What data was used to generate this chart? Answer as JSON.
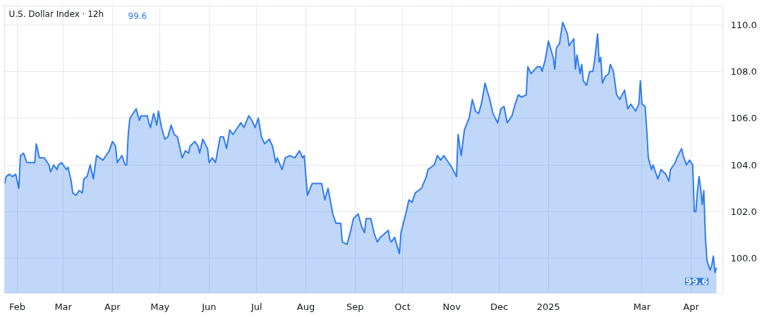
{
  "chart_data": {
    "type": "area",
    "title": "U.S. Dollar Index · 12h",
    "annotations": [
      "99.6",
      {
        "text": "99.6",
        "x": "2025-04-17",
        "y": 99.6
      }
    ],
    "x": [
      "2024-01-24",
      "2024-01-25",
      "2024-01-27",
      "2024-01-29",
      "2024-01-31",
      "2024-02-02",
      "2024-02-03",
      "2024-02-05",
      "2024-02-07",
      "2024-02-10",
      "2024-02-12",
      "2024-02-13",
      "2024-02-15",
      "2024-02-18",
      "2024-02-21",
      "2024-02-22",
      "2024-02-24",
      "2024-02-26",
      "2024-02-27",
      "2024-02-29",
      "2024-03-03",
      "2024-03-04",
      "2024-03-06",
      "2024-03-07",
      "2024-03-09",
      "2024-03-11",
      "2024-03-13",
      "2024-03-14",
      "2024-03-16",
      "2024-03-18",
      "2024-03-20",
      "2024-03-22",
      "2024-03-26",
      "2024-03-28",
      "2024-03-30",
      "2024-04-01",
      "2024-04-03",
      "2024-04-04",
      "2024-04-07",
      "2024-04-09",
      "2024-04-10",
      "2024-04-11",
      "2024-04-12",
      "2024-04-16",
      "2024-04-18",
      "2024-04-19",
      "2024-04-23",
      "2024-04-24",
      "2024-04-25",
      "2024-04-27",
      "2024-04-29",
      "2024-04-30",
      "2024-05-02",
      "2024-05-04",
      "2024-05-06",
      "2024-05-08",
      "2024-05-10",
      "2024-05-12",
      "2024-05-15",
      "2024-05-17",
      "2024-05-19",
      "2024-05-20",
      "2024-05-23",
      "2024-05-25",
      "2024-05-26",
      "2024-05-28",
      "2024-05-31",
      "2024-06-01",
      "2024-06-03",
      "2024-06-05",
      "2024-06-08",
      "2024-06-10",
      "2024-06-12",
      "2024-06-14",
      "2024-06-16",
      "2024-06-18",
      "2024-06-21",
      "2024-06-23",
      "2024-06-26",
      "2024-06-28",
      "2024-06-30",
      "2024-07-02",
      "2024-07-04",
      "2024-07-06",
      "2024-07-09",
      "2024-07-11",
      "2024-07-13",
      "2024-07-14",
      "2024-07-17",
      "2024-07-19",
      "2024-07-22",
      "2024-07-25",
      "2024-07-28",
      "2024-07-30",
      "2024-07-31",
      "2024-08-02",
      "2024-08-05",
      "2024-08-08",
      "2024-08-11",
      "2024-08-13",
      "2024-08-15",
      "2024-08-18",
      "2024-08-20",
      "2024-08-23",
      "2024-08-24",
      "2024-08-27",
      "2024-08-29",
      "2024-08-31",
      "2024-09-03",
      "2024-09-05",
      "2024-09-07",
      "2024-09-08",
      "2024-09-11",
      "2024-09-13",
      "2024-09-15",
      "2024-09-17",
      "2024-09-22",
      "2024-09-23",
      "2024-09-24",
      "2024-09-26",
      "2024-09-29",
      "2024-09-30",
      "2024-10-03",
      "2024-10-05",
      "2024-10-07",
      "2024-10-09",
      "2024-10-13",
      "2024-10-16",
      "2024-10-17",
      "2024-10-21",
      "2024-10-23",
      "2024-10-25",
      "2024-10-27",
      "2024-10-30",
      "2024-11-01",
      "2024-11-04",
      "2024-11-05",
      "2024-11-07",
      "2024-11-09",
      "2024-11-12",
      "2024-11-14",
      "2024-11-16",
      "2024-11-18",
      "2024-11-20",
      "2024-11-22",
      "2024-11-25",
      "2024-11-27",
      "2024-11-30",
      "2024-12-02",
      "2024-12-04",
      "2024-12-06",
      "2024-12-09",
      "2024-12-11",
      "2024-12-13",
      "2024-12-15",
      "2024-12-18",
      "2024-12-19",
      "2024-12-21",
      "2024-12-25",
      "2024-12-27",
      "2024-12-28",
      "2024-12-30",
      "2025-01-01",
      "2025-01-04",
      "2025-01-05",
      "2025-01-06",
      "2025-01-08",
      "2025-01-10",
      "2025-01-13",
      "2025-01-14",
      "2025-01-17",
      "2025-01-18",
      "2025-01-19",
      "2025-01-21",
      "2025-01-22",
      "2025-01-23",
      "2025-01-25",
      "2025-01-27",
      "2025-01-29",
      "2025-01-30",
      "2025-02-01",
      "2025-02-02",
      "2025-02-03",
      "2025-02-04",
      "2025-02-06",
      "2025-02-08",
      "2025-02-09",
      "2025-02-11",
      "2025-02-13",
      "2025-02-15",
      "2025-02-18",
      "2025-02-20",
      "2025-02-22",
      "2025-02-25",
      "2025-02-27",
      "2025-02-28",
      "2025-03-01",
      "2025-03-03",
      "2025-03-04",
      "2025-03-05",
      "2025-03-07",
      "2025-03-08",
      "2025-03-11",
      "2025-03-13",
      "2025-03-16",
      "2025-03-18",
      "2025-03-19",
      "2025-03-22",
      "2025-03-23",
      "2025-03-26",
      "2025-03-27",
      "2025-03-29",
      "2025-03-31",
      "2025-04-02",
      "2025-04-03",
      "2025-04-04",
      "2025-04-05",
      "2025-04-06",
      "2025-04-07",
      "2025-04-08",
      "2025-04-09",
      "2025-04-10",
      "2025-04-11",
      "2025-04-13",
      "2025-04-14",
      "2025-04-15",
      "2025-04-16",
      "2025-04-17"
    ],
    "series": [
      {
        "color": "#2f7bf0",
        "values": [
          103.2,
          103.5,
          103.6,
          103.5,
          103.6,
          103.0,
          104.4,
          104.5,
          104.1,
          104.1,
          104.1,
          104.9,
          104.3,
          104.3,
          104.0,
          103.7,
          104.0,
          103.8,
          104.0,
          104.1,
          103.8,
          103.9,
          103.3,
          102.8,
          102.7,
          102.9,
          102.8,
          103.4,
          103.5,
          104.0,
          103.4,
          104.4,
          104.2,
          104.4,
          104.6,
          105.0,
          104.8,
          104.1,
          104.4,
          104.0,
          104.0,
          105.3,
          106.0,
          106.4,
          105.9,
          106.1,
          106.1,
          105.8,
          105.6,
          106.2,
          105.7,
          106.3,
          105.6,
          105.1,
          105.2,
          105.7,
          105.3,
          105.2,
          104.3,
          104.6,
          104.5,
          104.8,
          105.0,
          104.8,
          104.5,
          105.1,
          104.7,
          104.1,
          104.3,
          104.1,
          105.2,
          105.2,
          104.7,
          105.5,
          105.3,
          105.5,
          105.8,
          105.6,
          106.1,
          105.9,
          105.6,
          106.0,
          105.2,
          104.9,
          105.1,
          104.8,
          104.1,
          104.3,
          103.8,
          104.3,
          104.4,
          104.3,
          104.6,
          104.3,
          104.4,
          102.7,
          103.2,
          103.2,
          103.2,
          102.5,
          103.0,
          101.9,
          101.5,
          101.5,
          100.7,
          100.6,
          101.1,
          101.7,
          101.9,
          101.4,
          101.1,
          101.7,
          101.7,
          101.1,
          100.7,
          100.9,
          101.2,
          100.8,
          100.7,
          100.9,
          100.2,
          101.1,
          101.9,
          102.5,
          102.4,
          102.8,
          103.0,
          103.5,
          103.8,
          104.0,
          104.4,
          104.2,
          104.4,
          104.1,
          103.9,
          103.5,
          105.3,
          104.4,
          105.5,
          106.0,
          106.8,
          106.3,
          106.2,
          106.7,
          107.5,
          106.8,
          106.2,
          105.8,
          106.4,
          106.5,
          105.8,
          106.1,
          106.6,
          107.0,
          106.9,
          107.0,
          108.2,
          107.9,
          108.2,
          108.2,
          108.0,
          108.5,
          109.3,
          108.6,
          108.1,
          109.0,
          109.2,
          110.1,
          109.6,
          109.1,
          109.4,
          108.1,
          108.7,
          107.9,
          108.3,
          107.6,
          107.4,
          108.0,
          108.0,
          108.4,
          109.6,
          108.4,
          108.6,
          107.5,
          107.8,
          107.9,
          108.3,
          108.0,
          107.0,
          106.8,
          107.2,
          106.4,
          106.6,
          106.3,
          106.6,
          107.6,
          106.6,
          106.5,
          105.5,
          104.3,
          103.8,
          104.0,
          103.4,
          103.8,
          103.6,
          103.3,
          103.8,
          104.1,
          104.3,
          104.7,
          104.4,
          104.0,
          104.2,
          104.0,
          102.0,
          102.0,
          102.9,
          103.5,
          103.0,
          102.3,
          102.9,
          100.9,
          99.9,
          99.5,
          99.7,
          100.1,
          99.4,
          99.6
        ]
      }
    ],
    "xlim": [
      "2024-01-24",
      "2025-04-21"
    ],
    "xticks": [
      {
        "value": "2024-02-01",
        "label": "Feb"
      },
      {
        "value": "2024-03-01",
        "label": "Mar"
      },
      {
        "value": "2024-04-01",
        "label": "Apr"
      },
      {
        "value": "2024-05-01",
        "label": "May"
      },
      {
        "value": "2024-06-01",
        "label": "Jun"
      },
      {
        "value": "2024-07-01",
        "label": "Jul"
      },
      {
        "value": "2024-08-01",
        "label": "Aug"
      },
      {
        "value": "2024-09-01",
        "label": "Sep"
      },
      {
        "value": "2024-10-01",
        "label": "Oct"
      },
      {
        "value": "2024-11-01",
        "label": "Nov"
      },
      {
        "value": "2024-12-01",
        "label": "Dec"
      },
      {
        "value": "2025-01-01",
        "label": "2025"
      },
      {
        "value": "2025-03-01",
        "label": "Mar"
      },
      {
        "value": "2025-04-01",
        "label": "Apr"
      }
    ],
    "ylim": [
      98.5,
      110.8
    ],
    "yticks": [
      {
        "value": 100,
        "label": "100.0"
      },
      {
        "value": 102,
        "label": "102.0"
      },
      {
        "value": 104,
        "label": "104.0"
      },
      {
        "value": 106,
        "label": "106.0"
      },
      {
        "value": 108,
        "label": "108.0"
      },
      {
        "value": 110,
        "label": "110.0"
      }
    ],
    "grid": true
  }
}
